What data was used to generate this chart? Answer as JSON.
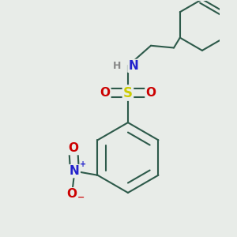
{
  "background_color": "#e8ece8",
  "bond_color": "#2d5a4a",
  "bond_width": 1.5,
  "atom_colors": {
    "N": "#2222cc",
    "S": "#cccc00",
    "O": "#cc0000",
    "H": "#888888"
  },
  "figsize": [
    3.0,
    3.0
  ],
  "dpi": 100
}
